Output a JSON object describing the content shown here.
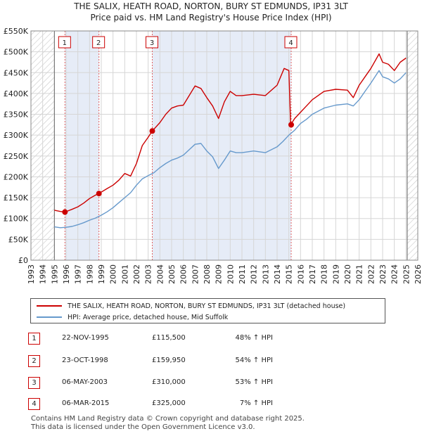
{
  "chart_data": {
    "type": "line",
    "title": "THE SALIX, HEATH ROAD, NORTON, BURY ST EDMUNDS, IP31 3LT",
    "subtitle": "Price paid vs. HM Land Registry's House Price Index (HPI)",
    "ylim": [
      0,
      550000
    ],
    "xlim": [
      1993,
      2026
    ],
    "y_ticks": [
      0,
      50000,
      100000,
      150000,
      200000,
      250000,
      300000,
      350000,
      400000,
      450000,
      500000,
      550000
    ],
    "y_tick_labels": [
      "£0",
      "£50K",
      "£100K",
      "£150K",
      "£200K",
      "£250K",
      "£300K",
      "£350K",
      "£400K",
      "£450K",
      "£500K",
      "£550K"
    ],
    "x_ticks": [
      1993,
      1994,
      1995,
      1996,
      1997,
      1998,
      1999,
      2000,
      2001,
      2002,
      2003,
      2004,
      2005,
      2006,
      2007,
      2008,
      2009,
      2010,
      2011,
      2012,
      2013,
      2014,
      2015,
      2016,
      2017,
      2018,
      2019,
      2020,
      2021,
      2022,
      2023,
      2024,
      2025,
      2026
    ],
    "x_tick_labels": [
      "1993",
      "1994",
      "1995",
      "1996",
      "1997",
      "1998",
      "1999",
      "2000",
      "2001",
      "2002",
      "2003",
      "2004",
      "2005",
      "2006",
      "2007",
      "2008",
      "2009",
      "2010",
      "2011",
      "2012",
      "2013",
      "2014",
      "2015",
      "2016",
      "2017",
      "2018",
      "2019",
      "2020",
      "2021",
      "2022",
      "2023",
      "2024",
      "2025",
      "2026"
    ],
    "hatched_before": 1995.0,
    "hatched_after": 2025.1,
    "shaded_spans": [
      [
        1995.9,
        1998.8
      ],
      [
        2003.35,
        2015.2
      ]
    ],
    "series": [
      {
        "name": "THE SALIX, HEATH ROAD, NORTON, BURY ST EDMUNDS, IP31 3LT (detached house)",
        "color": "#cc0000",
        "x": [
          1995.0,
          1995.5,
          1995.9,
          1996.5,
          1997.0,
          1997.5,
          1998.0,
          1998.5,
          1998.8,
          1999.5,
          2000.0,
          2000.5,
          2001.0,
          2001.5,
          2002.0,
          2002.5,
          2003.0,
          2003.35,
          2004.0,
          2004.5,
          2005.0,
          2005.5,
          2006.0,
          2006.5,
          2007.0,
          2007.5,
          2008.0,
          2008.5,
          2009.0,
          2009.5,
          2010.0,
          2010.5,
          2011.0,
          2012.0,
          2013.0,
          2014.0,
          2014.6,
          2015.0,
          2015.15,
          2015.5,
          2016.0,
          2016.5,
          2017.0,
          2018.0,
          2019.0,
          2020.0,
          2020.5,
          2021.0,
          2021.5,
          2022.0,
          2022.7,
          2023.0,
          2023.5,
          2024.0,
          2024.5,
          2025.0
        ],
        "values": [
          120000,
          117000,
          115500,
          122000,
          128000,
          137000,
          148000,
          156000,
          159950,
          172000,
          180000,
          192000,
          208000,
          202000,
          232000,
          275000,
          295000,
          310000,
          330000,
          350000,
          365000,
          370000,
          372000,
          395000,
          418000,
          412000,
          390000,
          370000,
          340000,
          380000,
          405000,
          395000,
          395000,
          398000,
          395000,
          420000,
          460000,
          455000,
          325000,
          340000,
          355000,
          370000,
          385000,
          405000,
          410000,
          408000,
          390000,
          420000,
          440000,
          460000,
          495000,
          475000,
          470000,
          455000,
          475000,
          485000
        ]
      },
      {
        "name": "HPI: Average price, detached house, Mid Suffolk",
        "color": "#6699cc",
        "x": [
          1995.0,
          1995.5,
          1996.0,
          1996.5,
          1997.0,
          1997.5,
          1998.0,
          1998.5,
          1999.0,
          1999.5,
          2000.0,
          2000.5,
          2001.0,
          2001.5,
          2002.0,
          2002.5,
          2003.0,
          2003.5,
          2004.0,
          2004.5,
          2005.0,
          2005.5,
          2006.0,
          2006.5,
          2007.0,
          2007.5,
          2008.0,
          2008.5,
          2009.0,
          2009.5,
          2010.0,
          2010.5,
          2011.0,
          2012.0,
          2013.0,
          2014.0,
          2014.5,
          2015.0,
          2015.5,
          2016.0,
          2016.5,
          2017.0,
          2018.0,
          2019.0,
          2020.0,
          2020.5,
          2021.0,
          2021.5,
          2022.0,
          2022.7,
          2023.0,
          2023.5,
          2024.0,
          2024.5,
          2025.0
        ],
        "values": [
          80000,
          78000,
          79000,
          81000,
          85000,
          90000,
          96000,
          101000,
          108000,
          116000,
          126000,
          138000,
          150000,
          162000,
          180000,
          195000,
          203000,
          210000,
          222000,
          232000,
          240000,
          245000,
          252000,
          265000,
          278000,
          280000,
          262000,
          248000,
          220000,
          240000,
          262000,
          258000,
          258000,
          262000,
          258000,
          272000,
          285000,
          300000,
          312000,
          328000,
          338000,
          350000,
          365000,
          372000,
          375000,
          370000,
          385000,
          405000,
          425000,
          455000,
          440000,
          435000,
          425000,
          435000,
          450000
        ]
      }
    ],
    "sale_markers": [
      {
        "label": "1",
        "x": 1995.9,
        "value": 115500
      },
      {
        "label": "2",
        "x": 1998.8,
        "value": 159950
      },
      {
        "label": "3",
        "x": 2003.35,
        "value": 310000
      },
      {
        "label": "4",
        "x": 2015.2,
        "value": 325000
      }
    ]
  },
  "legend": {
    "property_label": "THE SALIX, HEATH ROAD, NORTON, BURY ST EDMUNDS, IP31 3LT (detached house)",
    "hpi_label": "HPI: Average price, detached house, Mid Suffolk",
    "property_color": "#cc0000",
    "hpi_color": "#6699cc"
  },
  "transactions": [
    {
      "num": "1",
      "date": "22-NOV-1995",
      "price": "£115,500",
      "hpi": "48% ↑ HPI"
    },
    {
      "num": "2",
      "date": "23-OCT-1998",
      "price": "£159,950",
      "hpi": "54% ↑ HPI"
    },
    {
      "num": "3",
      "date": "06-MAY-2003",
      "price": "£310,000",
      "hpi": "53% ↑ HPI"
    },
    {
      "num": "4",
      "date": "06-MAR-2015",
      "price": "£325,000",
      "hpi": "7% ↑ HPI"
    }
  ],
  "footer": {
    "line1": "Contains HM Land Registry data © Crown copyright and database right 2025.",
    "line2": "This data is licensed under the Open Government Licence v3.0."
  }
}
